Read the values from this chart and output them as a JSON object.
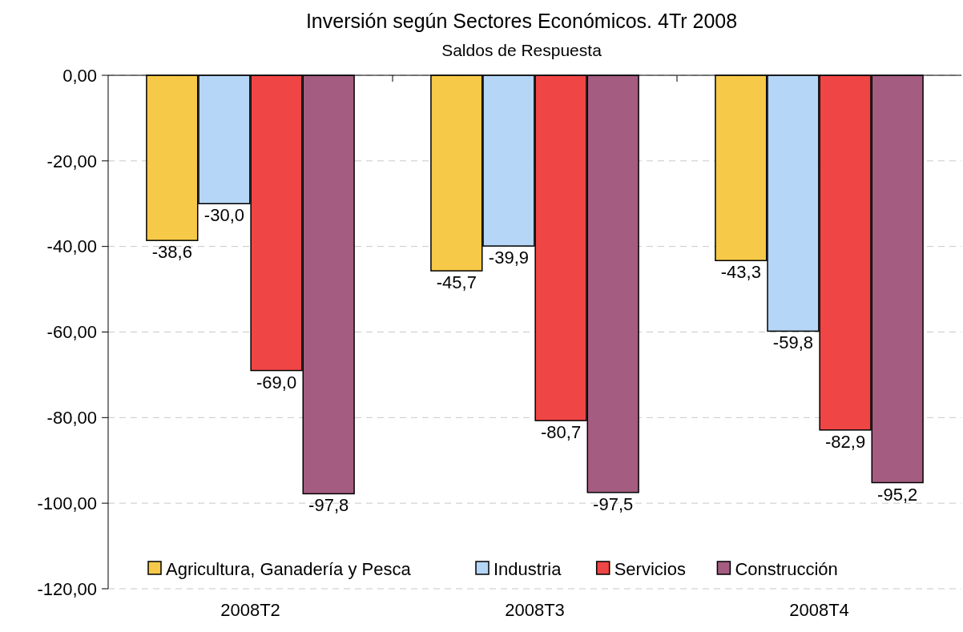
{
  "chart_data": {
    "type": "bar",
    "title": "Inversión según Sectores Económicos. 4Tr 2008",
    "subtitle": "Saldos de Respuesta",
    "categories": [
      "2008T2",
      "2008T3",
      "2008T4"
    ],
    "series": [
      {
        "name": "Agricultura, Ganadería y Pesca",
        "color": "#f7c948",
        "values": [
          -38.6,
          -45.7,
          -43.3
        ],
        "value_labels": [
          "-38,6",
          "-45,7",
          "-43,3"
        ]
      },
      {
        "name": "Industria",
        "color": "#b5d6f7",
        "values": [
          -30.0,
          -39.9,
          -59.8
        ],
        "value_labels": [
          "-30,0",
          "-39,9",
          "-59,8"
        ]
      },
      {
        "name": "Servicios",
        "color": "#f04545",
        "values": [
          -69.0,
          -80.7,
          -82.9
        ],
        "value_labels": [
          "-69,0",
          "-80,7",
          "-82,9"
        ]
      },
      {
        "name": "Construcción",
        "color": "#a45c80",
        "values": [
          -97.8,
          -97.5,
          -95.2
        ],
        "value_labels": [
          "-97,8",
          "-97,5",
          "-95,2"
        ]
      }
    ],
    "ylim": [
      -120,
      0
    ],
    "yticks": [
      {
        "value": 0,
        "label": "0,00"
      },
      {
        "value": -20,
        "label": "-20,00"
      },
      {
        "value": -40,
        "label": "-40,00"
      },
      {
        "value": -60,
        "label": "-60,00"
      },
      {
        "value": -80,
        "label": "-80,00"
      },
      {
        "value": -100,
        "label": "-100,00"
      },
      {
        "value": -120,
        "label": "-120,00"
      }
    ],
    "grid": "y",
    "legend": "bottom"
  }
}
